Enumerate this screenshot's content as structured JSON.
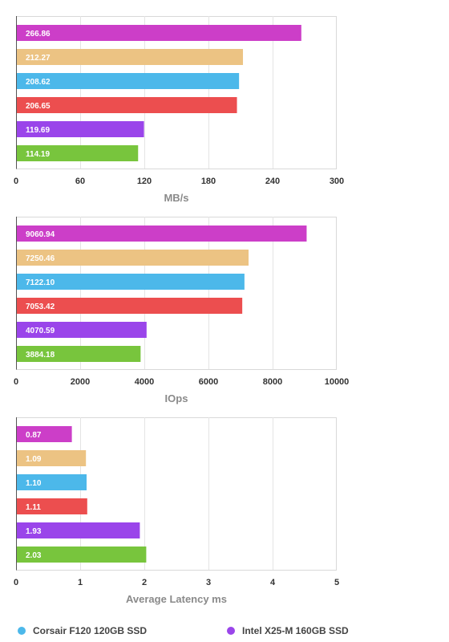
{
  "colors": {
    "magenta": "#cc3ec8",
    "tan": "#ecc383",
    "blue": "#4cb8ea",
    "red": "#ec4e4f",
    "purple": "#9a45ea",
    "green": "#78c53d"
  },
  "chart_data": [
    {
      "type": "bar",
      "orientation": "horizontal",
      "xlabel": "MB/s",
      "xlim": [
        0,
        300
      ],
      "xticks": [
        "0",
        "60",
        "120",
        "180",
        "240",
        "300"
      ],
      "grid": true,
      "bars": [
        {
          "label": "266.86",
          "value": 266.86,
          "color": "magenta"
        },
        {
          "label": "212.27",
          "value": 212.27,
          "color": "tan"
        },
        {
          "label": "208.62",
          "value": 208.62,
          "color": "blue"
        },
        {
          "label": "206.65",
          "value": 206.65,
          "color": "red"
        },
        {
          "label": "119.69",
          "value": 119.69,
          "color": "purple"
        },
        {
          "label": "114.19",
          "value": 114.19,
          "color": "green"
        }
      ]
    },
    {
      "type": "bar",
      "orientation": "horizontal",
      "xlabel": "IOps",
      "xlim": [
        0,
        10000
      ],
      "xticks": [
        "0",
        "2000",
        "4000",
        "6000",
        "8000",
        "10000"
      ],
      "grid": true,
      "bars": [
        {
          "label": "9060.94",
          "value": 9060.94,
          "color": "magenta"
        },
        {
          "label": "7250.46",
          "value": 7250.46,
          "color": "tan"
        },
        {
          "label": "7122.10",
          "value": 7122.1,
          "color": "blue"
        },
        {
          "label": "7053.42",
          "value": 7053.42,
          "color": "red"
        },
        {
          "label": "4070.59",
          "value": 4070.59,
          "color": "purple"
        },
        {
          "label": "3884.18",
          "value": 3884.18,
          "color": "green"
        }
      ]
    },
    {
      "type": "bar",
      "orientation": "horizontal",
      "xlabel": "Average Latency ms",
      "xlim": [
        0,
        5
      ],
      "xticks": [
        "0",
        "1",
        "2",
        "3",
        "4",
        "5"
      ],
      "grid": true,
      "bars": [
        {
          "label": "0.87",
          "value": 0.87,
          "color": "magenta"
        },
        {
          "label": "1.09",
          "value": 1.09,
          "color": "tan"
        },
        {
          "label": "1.10",
          "value": 1.1,
          "color": "blue"
        },
        {
          "label": "1.11",
          "value": 1.11,
          "color": "red"
        },
        {
          "label": "1.93",
          "value": 1.93,
          "color": "purple"
        },
        {
          "label": "2.03",
          "value": 2.03,
          "color": "green"
        }
      ]
    }
  ],
  "legend": [
    {
      "label": "Corsair F120 120GB SSD",
      "color": "blue"
    },
    {
      "label": "Intel X25-M 160GB SSD",
      "color": "purple"
    }
  ]
}
